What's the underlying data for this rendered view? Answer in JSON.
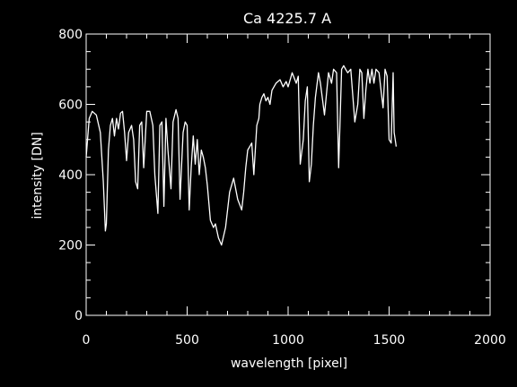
{
  "chart_data": {
    "type": "line",
    "title": "Ca 4225.7 A",
    "xlabel": "wavelength [pixel]",
    "ylabel": "intensity [DN]",
    "xlim": [
      0,
      2000
    ],
    "ylim": [
      0,
      800
    ],
    "xticks": [
      0,
      500,
      1000,
      1500,
      2000
    ],
    "yticks": [
      0,
      200,
      400,
      600,
      800
    ],
    "xtick_labels": [
      "0",
      "500",
      "1000",
      "1500",
      "2000"
    ],
    "ytick_labels": [
      "0",
      "200",
      "400",
      "600",
      "800"
    ],
    "background": "#000000",
    "foreground": "#ffffff",
    "grid": false,
    "series": [
      {
        "x": [
          0,
          15,
          30,
          50,
          70,
          85,
          95,
          100,
          110,
          120,
          130,
          140,
          150,
          160,
          170,
          180,
          190,
          200,
          210,
          225,
          235,
          245,
          255,
          265,
          275,
          285,
          300,
          315,
          330,
          340,
          355,
          365,
          375,
          385,
          395,
          405,
          420,
          430,
          445,
          455,
          465,
          480,
          490,
          500,
          510,
          520,
          530,
          540,
          550,
          560,
          570,
          580,
          590,
          600,
          615,
          630,
          640,
          655,
          670,
          690,
          710,
          730,
          750,
          770,
          780,
          790,
          800,
          810,
          820,
          830,
          845,
          855,
          860,
          870,
          880,
          890,
          900,
          910,
          920,
          940,
          960,
          975,
          990,
          1000,
          1020,
          1040,
          1050,
          1060,
          1075,
          1085,
          1095,
          1105,
          1115,
          1125,
          1135,
          1150,
          1160,
          1180,
          1200,
          1215,
          1225,
          1240,
          1250,
          1265,
          1275,
          1285,
          1295,
          1310,
          1330,
          1345,
          1355,
          1365,
          1375,
          1385,
          1395,
          1405,
          1415,
          1425,
          1435,
          1450,
          1460,
          1470,
          1480,
          1490,
          1500,
          1510,
          1520,
          1525,
          1530,
          1535
        ],
        "y": [
          450,
          560,
          580,
          570,
          520,
          380,
          240,
          260,
          470,
          540,
          560,
          510,
          560,
          530,
          575,
          580,
          520,
          440,
          520,
          540,
          500,
          380,
          360,
          540,
          550,
          420,
          580,
          580,
          540,
          400,
          290,
          540,
          550,
          310,
          560,
          470,
          360,
          550,
          585,
          560,
          330,
          520,
          550,
          540,
          300,
          420,
          510,
          430,
          500,
          400,
          470,
          450,
          420,
          370,
          270,
          250,
          260,
          220,
          200,
          250,
          350,
          390,
          330,
          300,
          350,
          420,
          470,
          480,
          490,
          400,
          540,
          560,
          600,
          620,
          630,
          610,
          620,
          600,
          640,
          660,
          670,
          650,
          665,
          650,
          690,
          660,
          680,
          430,
          500,
          610,
          650,
          380,
          430,
          540,
          620,
          690,
          660,
          570,
          690,
          660,
          700,
          690,
          420,
          700,
          710,
          700,
          690,
          700,
          550,
          600,
          700,
          690,
          560,
          640,
          700,
          660,
          700,
          660,
          700,
          690,
          640,
          590,
          700,
          680,
          500,
          490,
          690,
          520,
          500,
          480
        ]
      }
    ]
  }
}
